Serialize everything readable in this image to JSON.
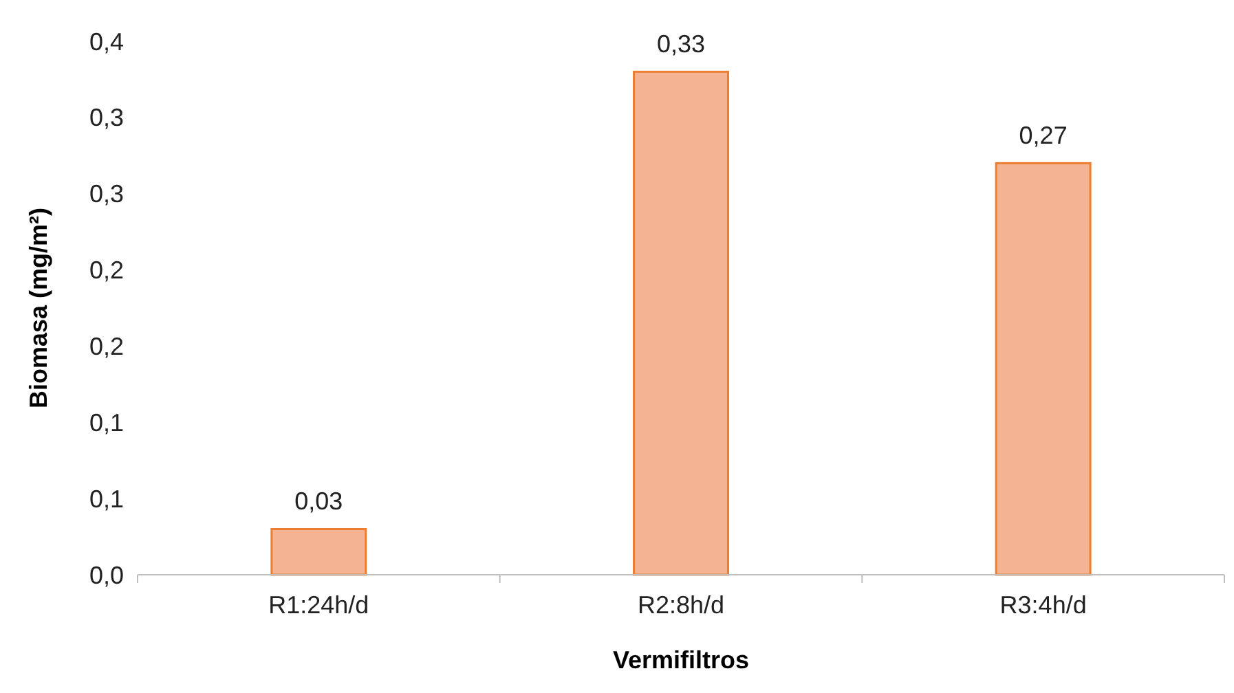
{
  "chart_data": {
    "type": "bar",
    "xlabel": "Vermifiltros",
    "ylabel": "Biomasa (mg/m²)",
    "categories": [
      "R1:24h/d",
      "R2:8h/d",
      "R3:4h/d"
    ],
    "values": [
      0.03,
      0.33,
      0.27
    ],
    "value_labels": [
      "0,03",
      "0,33",
      "0,27"
    ],
    "color": "#f4b493",
    "ylim": [
      0,
      0.35
    ],
    "yticks": [
      {
        "value": 0,
        "label": "0,0"
      },
      {
        "value": 0.05,
        "label": "0,1"
      },
      {
        "value": 0.1,
        "label": "0,1"
      },
      {
        "value": 0.15,
        "label": "0,2"
      },
      {
        "value": 0.2,
        "label": "0,2"
      },
      {
        "value": 0.25,
        "label": "0,3"
      },
      {
        "value": 0.3,
        "label": "0,3"
      },
      {
        "value": 0.35,
        "label": "0,4"
      }
    ],
    "grid": false
  }
}
